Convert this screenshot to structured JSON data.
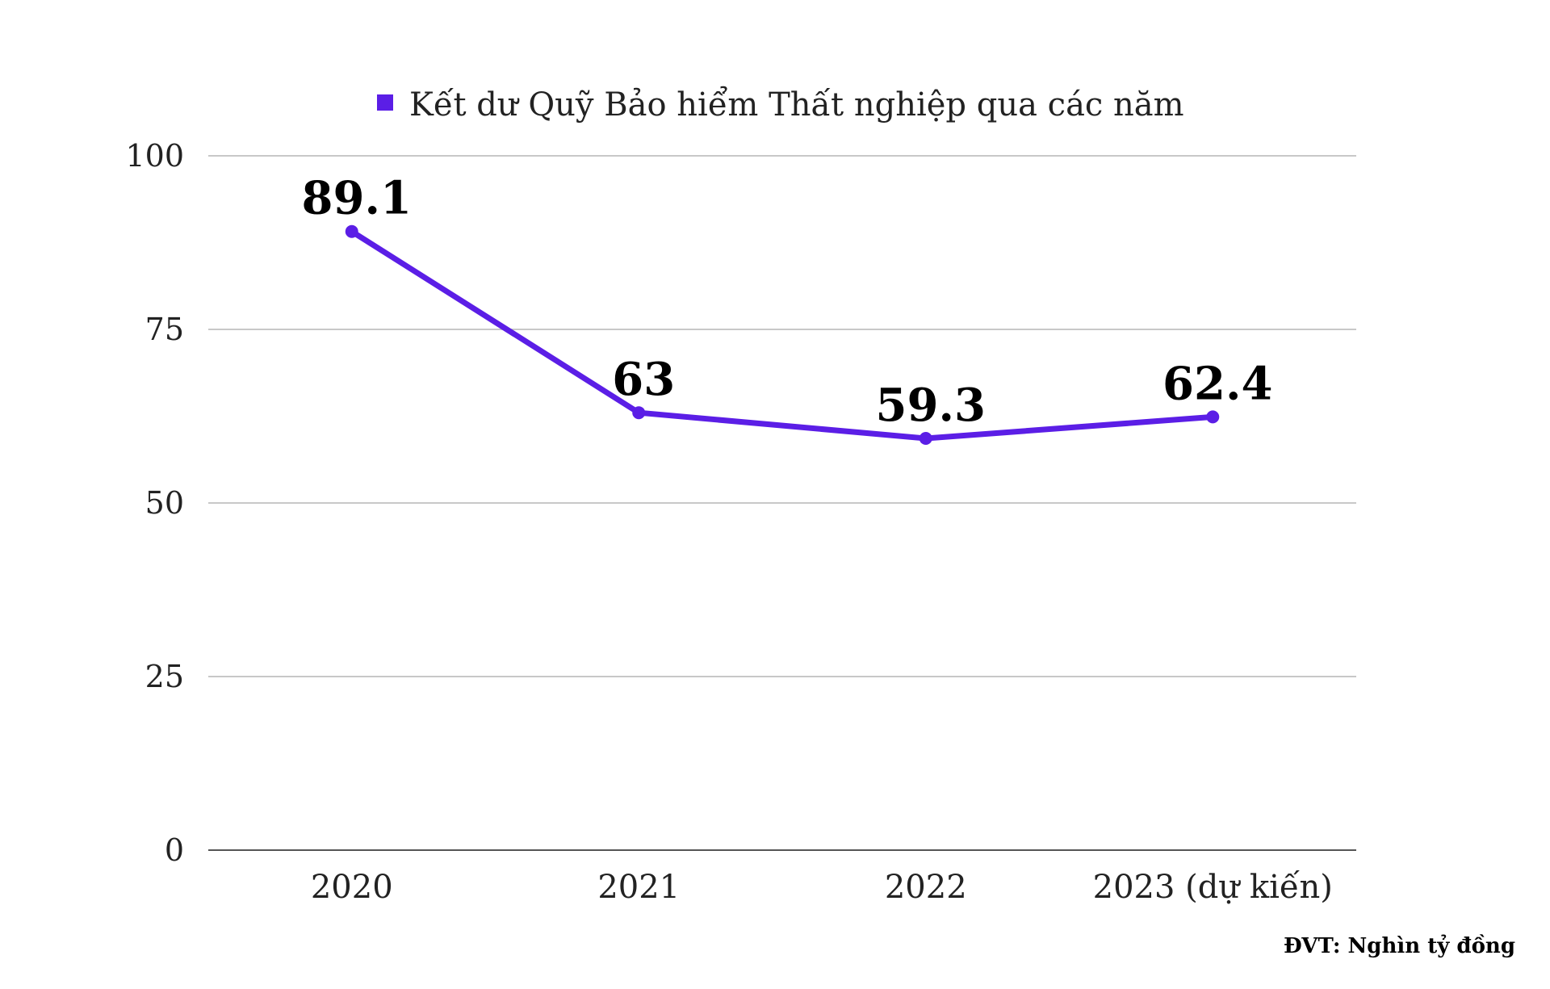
{
  "chart_data": {
    "type": "line",
    "categories": [
      "2020",
      "2021",
      "2022",
      "2023 (dự kiến)"
    ],
    "series": [
      {
        "name": "Kết dư Quỹ Bảo hiểm Thất nghiệp qua các năm",
        "values": [
          89.1,
          63,
          59.3,
          62.4
        ],
        "labels": [
          "89.1",
          "63",
          "59.3",
          "62.4"
        ],
        "color": "#5b1ee6"
      }
    ],
    "ylim": [
      0,
      100
    ],
    "yticks": [
      0,
      25,
      50,
      75,
      100
    ],
    "grid": true,
    "legend": "top-center",
    "note": "ĐVT: Nghìn tỷ đồng"
  }
}
